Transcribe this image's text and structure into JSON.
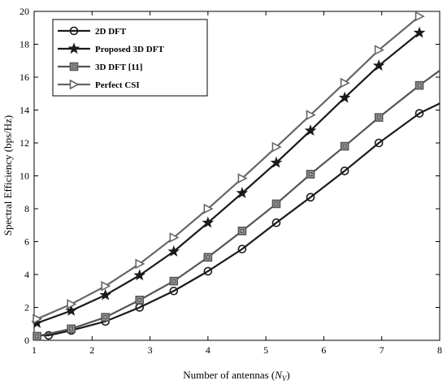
{
  "chart_data": {
    "type": "line",
    "title": "",
    "xlabel": "Number of antennas (",
    "xlabel_var": "N",
    "xlabel_sub": "V",
    "xlabel_end": ")",
    "ylabel": "Spectral Efficiency (bps/Hz)",
    "xlim": [
      1,
      8
    ],
    "ylim": [
      0,
      20
    ],
    "xticks": [
      "1",
      "2",
      "3",
      "4",
      "5",
      "6",
      "7",
      "8"
    ],
    "yticks": [
      "0",
      "2",
      "4",
      "6",
      "8",
      "10",
      "12",
      "14",
      "16",
      "18",
      "20"
    ],
    "grid": false,
    "legend_position": "top-left",
    "x": [
      1.05,
      1.64,
      2.23,
      2.82,
      3.41,
      4.0,
      4.59,
      5.18,
      5.77,
      6.36,
      6.95,
      7.65
    ],
    "series": [
      {
        "name": "2D DFT",
        "marker": "circle",
        "color": "#1a1a1a",
        "x": [
          1.05,
          1.25,
          1.64,
          2.23,
          2.82,
          3.41,
          4.0,
          4.59,
          5.18,
          5.77,
          6.36,
          6.95,
          7.65
        ],
        "values": [
          0.3,
          0.3,
          0.6,
          1.15,
          2.0,
          3.0,
          4.2,
          5.55,
          7.15,
          8.7,
          10.3,
          12.0,
          13.8
        ],
        "marker_x": [
          1.25,
          1.64,
          2.23,
          2.82,
          3.41,
          4.0,
          4.59,
          5.18,
          5.77,
          6.36,
          6.95,
          7.65
        ],
        "marker_values": [
          0.3,
          0.6,
          1.15,
          2.0,
          3.0,
          4.2,
          5.55,
          7.15,
          8.7,
          10.3,
          12.0,
          13.8
        ],
        "extension": [
          8.0,
          14.4
        ]
      },
      {
        "name": "Proposed 3D DFT",
        "marker": "star",
        "color": "#1a1a1a",
        "x": [
          1.05,
          1.64,
          2.23,
          2.82,
          3.41,
          4.0,
          4.59,
          5.18,
          5.77,
          6.36,
          6.95,
          7.65
        ],
        "values": [
          1.05,
          1.8,
          2.75,
          3.95,
          5.4,
          7.15,
          8.95,
          10.8,
          12.75,
          14.75,
          16.7,
          18.7
        ],
        "marker_x": [
          1.05,
          1.64,
          2.23,
          2.82,
          3.41,
          4.0,
          4.59,
          5.18,
          5.77,
          6.36,
          6.95,
          7.65
        ],
        "marker_values": [
          1.05,
          1.8,
          2.75,
          3.95,
          5.4,
          7.15,
          8.95,
          10.8,
          12.75,
          14.75,
          16.7,
          18.7
        ]
      },
      {
        "name": "3D DFT [11]",
        "marker": "square",
        "color": "#555555",
        "x": [
          1.05,
          1.64,
          2.23,
          2.82,
          3.41,
          4.0,
          4.59,
          5.18,
          5.77,
          6.36,
          6.95,
          7.65
        ],
        "values": [
          0.25,
          0.7,
          1.4,
          2.45,
          3.6,
          5.05,
          6.65,
          8.3,
          10.1,
          11.8,
          13.55,
          15.5
        ],
        "marker_x": [
          1.05,
          1.64,
          2.23,
          2.82,
          3.41,
          4.0,
          4.59,
          5.18,
          5.77,
          6.36,
          6.95,
          7.65
        ],
        "marker_values": [
          0.25,
          0.7,
          1.4,
          2.45,
          3.6,
          5.05,
          6.65,
          8.3,
          10.1,
          11.8,
          13.55,
          15.5
        ],
        "extension": [
          8.0,
          16.4
        ]
      },
      {
        "name": "Perfect CSI",
        "marker": "triangle-right",
        "color": "#666666",
        "x": [
          1.05,
          1.64,
          2.23,
          2.82,
          3.41,
          4.0,
          4.59,
          5.18,
          5.77,
          6.36,
          6.95,
          7.65
        ],
        "values": [
          1.3,
          2.2,
          3.3,
          4.65,
          6.25,
          8.0,
          9.85,
          11.75,
          13.7,
          15.65,
          17.65,
          19.7
        ],
        "marker_x": [
          1.05,
          1.64,
          2.23,
          2.82,
          3.41,
          4.0,
          4.59,
          5.18,
          5.77,
          6.36,
          6.95,
          7.65
        ],
        "marker_values": [
          1.3,
          2.2,
          3.3,
          4.65,
          6.25,
          8.0,
          9.85,
          11.75,
          13.7,
          15.65,
          17.65,
          19.7
        ]
      }
    ]
  }
}
